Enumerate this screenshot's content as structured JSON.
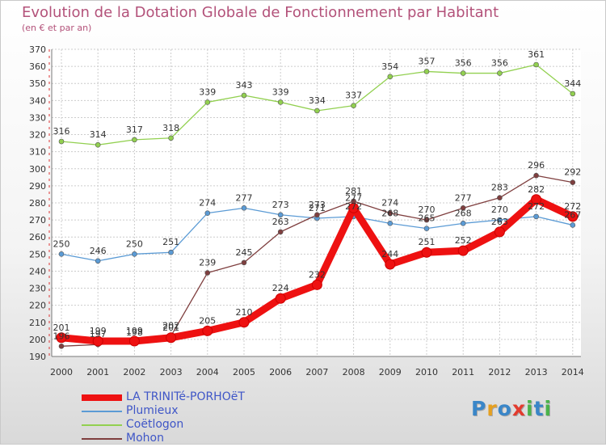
{
  "title": "Evolution de la Dotation Globale de Fonctionnement par Habitant",
  "subtitle": "(en € et par an)",
  "logo": {
    "text": "Proxiti"
  },
  "chart_data": {
    "type": "line",
    "x": [
      "2000",
      "2001",
      "2002",
      "2003",
      "2004",
      "2005",
      "2006",
      "2007",
      "2008",
      "2009",
      "2010",
      "2011",
      "2012",
      "2013",
      "2014"
    ],
    "ylim": [
      190,
      370
    ],
    "yticks": [
      190,
      200,
      210,
      220,
      230,
      240,
      250,
      260,
      270,
      280,
      290,
      300,
      310,
      320,
      330,
      340,
      350,
      360,
      370
    ],
    "grid": true,
    "legend_position": "bottom-left",
    "series": [
      {
        "name": "LA TRINITé-PORHOëT",
        "color": "#ee1111",
        "values": [
          201,
          199,
          199,
          201,
          205,
          210,
          224,
          232,
          277,
          244,
          251,
          252,
          263,
          282,
          272
        ],
        "labels": [
          "201",
          "199",
          "199",
          "201",
          "205",
          "210",
          "224",
          "232",
          "277",
          "244",
          "251",
          "252",
          "263",
          "282",
          "272"
        ]
      },
      {
        "name": "Plumieux",
        "color": "#5b9bd5",
        "values": [
          250,
          246,
          250,
          251,
          274,
          277,
          273,
          271,
          272,
          268,
          265,
          268,
          270,
          272,
          267
        ],
        "labels": [
          "250",
          "246",
          "250",
          "251",
          "274",
          "277",
          "273",
          "271",
          "272",
          "268",
          "265",
          "268",
          "270",
          "272",
          "267"
        ]
      },
      {
        "name": "Coëtlogon",
        "color": "#92d050",
        "values": [
          316,
          314,
          317,
          318,
          339,
          343,
          339,
          334,
          337,
          354,
          357,
          356,
          356,
          361,
          344
        ],
        "labels": [
          "316",
          "314",
          "317",
          "318",
          "339",
          "343",
          "339",
          "334",
          "337",
          "354",
          "357",
          "356",
          "356",
          "361",
          "344"
        ]
      },
      {
        "name": "Mohon",
        "color": "#7f3f3f",
        "values": [
          196,
          197,
          198,
          202,
          239,
          245,
          263,
          273,
          281,
          274,
          270,
          277,
          283,
          296,
          292
        ],
        "labels": [
          "196",
          "197",
          "198",
          "202",
          "239",
          "245",
          "263",
          "273",
          "281",
          "274",
          "270",
          "277",
          "283",
          "296",
          "292"
        ]
      }
    ]
  }
}
